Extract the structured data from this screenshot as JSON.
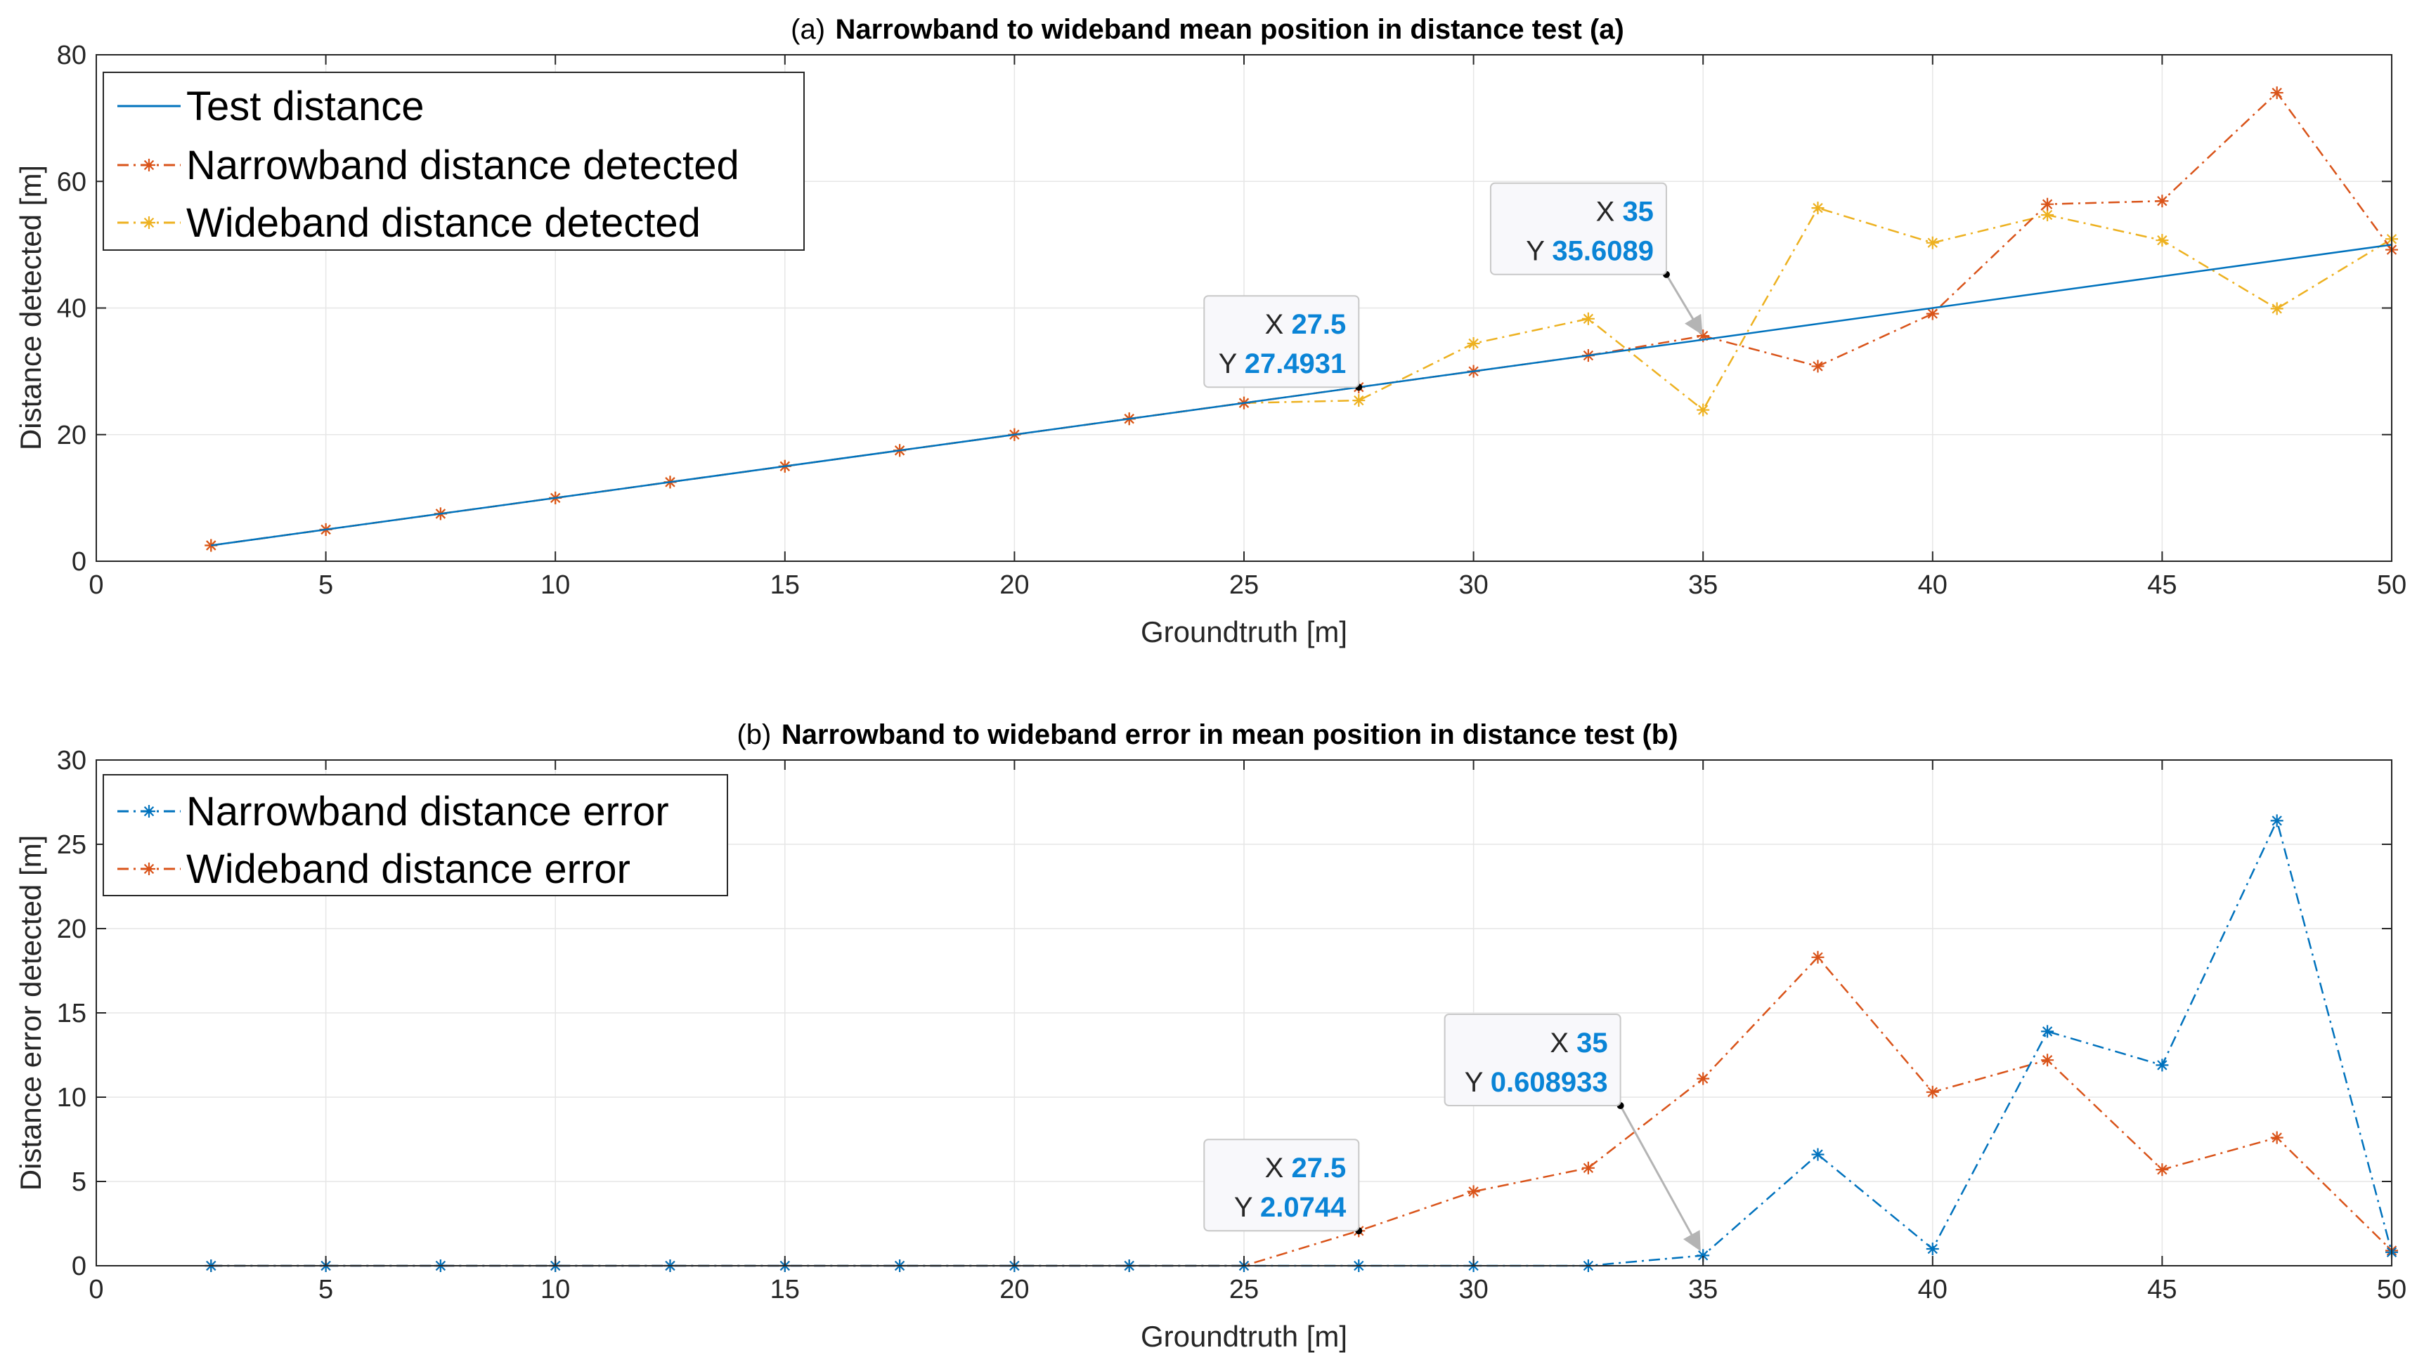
{
  "colors": {
    "test": "#0072BD",
    "narrowband": "#D95319",
    "wideband": "#EDB120",
    "grid": "#e6e6e6",
    "axis": "#262626",
    "datatip_value": "#0a84d6"
  },
  "chart_data": [
    {
      "type": "line",
      "title_prefix": "(a)",
      "title": "Narrowband to wideband mean position in distance test (a)",
      "xlabel": "Groundtruth [m]",
      "ylabel": "Distance detected [m]",
      "xlim": [
        0,
        50
      ],
      "ylim": [
        0,
        80
      ],
      "xticks": [
        0,
        5,
        10,
        15,
        20,
        25,
        30,
        35,
        40,
        45,
        50
      ],
      "yticks": [
        0,
        20,
        40,
        60,
        80
      ],
      "grid": true,
      "legend_position": "top-left",
      "x": [
        2.5,
        5,
        7.5,
        10,
        12.5,
        15,
        17.5,
        20,
        22.5,
        25,
        27.5,
        30,
        32.5,
        35,
        37.5,
        40,
        42.5,
        45,
        47.5,
        50
      ],
      "series": [
        {
          "name": "Test distance",
          "style": "solid",
          "color_key": "test",
          "marker": "none",
          "values": [
            2.5,
            5,
            7.5,
            10,
            12.5,
            15,
            17.5,
            20,
            22.5,
            25,
            27.5,
            30,
            32.5,
            35,
            37.5,
            40,
            42.5,
            45,
            47.5,
            50
          ]
        },
        {
          "name": "Narrowband distance detected",
          "style": "dashdot",
          "color_key": "narrowband",
          "marker": "star",
          "values": [
            2.5,
            5,
            7.5,
            10,
            12.5,
            15,
            17.5,
            20,
            22.5,
            25,
            27.5,
            30,
            32.5,
            35.6,
            30.8,
            39.1,
            56.4,
            56.9,
            74.0,
            49.2
          ]
        },
        {
          "name": "Wideband distance detected",
          "style": "dashdot",
          "color_key": "wideband",
          "marker": "star",
          "values": [
            2.5,
            5,
            7.5,
            10,
            12.5,
            15,
            17.5,
            20,
            22.5,
            25,
            25.4,
            34.4,
            38.3,
            23.9,
            55.8,
            50.3,
            54.7,
            50.7,
            39.9,
            50.9
          ]
        }
      ],
      "datatips": [
        {
          "x_key": "X",
          "x_value": "27.5",
          "y_key": "Y",
          "y_value": "27.4931",
          "point": [
            27.5,
            27.4931
          ],
          "anchor": [
            27.5,
            27.4931
          ]
        },
        {
          "x_key": "X",
          "x_value": "35",
          "y_key": "Y",
          "y_value": "35.6089",
          "point": [
            35,
            35.6089
          ],
          "anchor": [
            34.2,
            45.3
          ]
        }
      ]
    },
    {
      "type": "line",
      "title_prefix": "(b)",
      "title": "Narrowband to wideband error in mean position in distance test (b)",
      "xlabel": "Groundtruth [m]",
      "ylabel": "Distance error detected [m]",
      "xlim": [
        0,
        50
      ],
      "ylim": [
        0,
        30
      ],
      "xticks": [
        0,
        5,
        10,
        15,
        20,
        25,
        30,
        35,
        40,
        45,
        50
      ],
      "yticks": [
        0,
        5,
        10,
        15,
        20,
        25,
        30
      ],
      "grid": true,
      "legend_position": "top-left",
      "x": [
        2.5,
        5,
        7.5,
        10,
        12.5,
        15,
        17.5,
        20,
        22.5,
        25,
        27.5,
        30,
        32.5,
        35,
        37.5,
        40,
        42.5,
        45,
        47.5,
        50
      ],
      "series": [
        {
          "name": "Narrowband distance error",
          "style": "dashdot",
          "color_key": "test",
          "marker": "star",
          "values": [
            0,
            0,
            0,
            0,
            0,
            0,
            0,
            0,
            0,
            0,
            0,
            0,
            0,
            0.61,
            6.6,
            1.0,
            13.9,
            11.9,
            26.4,
            0.8
          ]
        },
        {
          "name": "Wideband distance error",
          "style": "dashdot",
          "color_key": "narrowband",
          "marker": "star",
          "values": [
            0,
            0,
            0,
            0,
            0,
            0,
            0,
            0,
            0,
            0,
            2.07,
            4.4,
            5.8,
            11.1,
            18.3,
            10.3,
            12.2,
            5.7,
            7.6,
            0.9
          ]
        }
      ],
      "datatips": [
        {
          "x_key": "X",
          "x_value": "27.5",
          "y_key": "Y",
          "y_value": "2.0744",
          "point": [
            27.5,
            2.0744
          ],
          "anchor": [
            27.5,
            2.0744
          ]
        },
        {
          "x_key": "X",
          "x_value": "35",
          "y_key": "Y",
          "y_value": "0.608933",
          "point": [
            35,
            0.608933
          ],
          "anchor": [
            33.2,
            9.5
          ]
        }
      ]
    }
  ]
}
